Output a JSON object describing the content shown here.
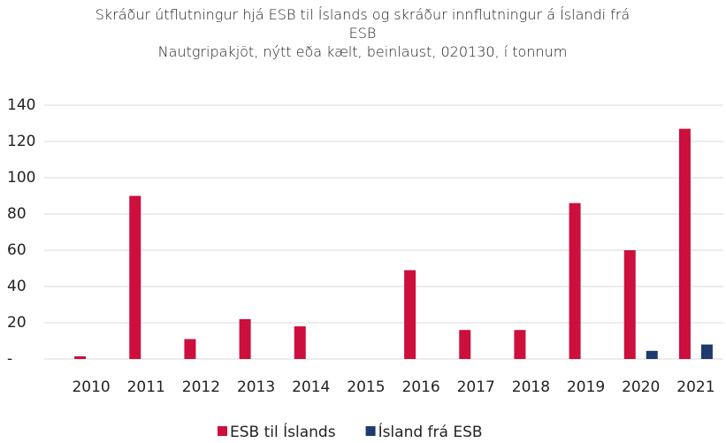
{
  "chart_data": {
    "type": "bar",
    "title": "Skráður útflutningur hjá ESB til Íslands og skráður innflutningur á Íslandi frá ESB",
    "subtitle": "Nautgripakjöt, nýtt eða kælt, beinlaust, 020130, í tonnum",
    "categories": [
      "2010",
      "2011",
      "2012",
      "2013",
      "2014",
      "2015",
      "2016",
      "2017",
      "2018",
      "2019",
      "2020",
      "2021"
    ],
    "series": [
      {
        "name": "ESB til Íslands",
        "color": "#cc0f3c",
        "values": [
          1.5,
          90,
          11,
          22,
          18,
          0,
          49,
          16,
          16,
          86,
          60,
          127
        ]
      },
      {
        "name": "Ísland frá ESB",
        "color": "#1e3a6e",
        "values": [
          0,
          0,
          0,
          0,
          0,
          0,
          0,
          0,
          0,
          0,
          4.5,
          8
        ]
      }
    ],
    "ylim": [
      0,
      140
    ],
    "yticks": [
      {
        "value": 0,
        "label": "-"
      },
      20,
      40,
      60,
      80,
      100,
      120,
      140
    ],
    "grid": true,
    "legend": "bottom"
  }
}
